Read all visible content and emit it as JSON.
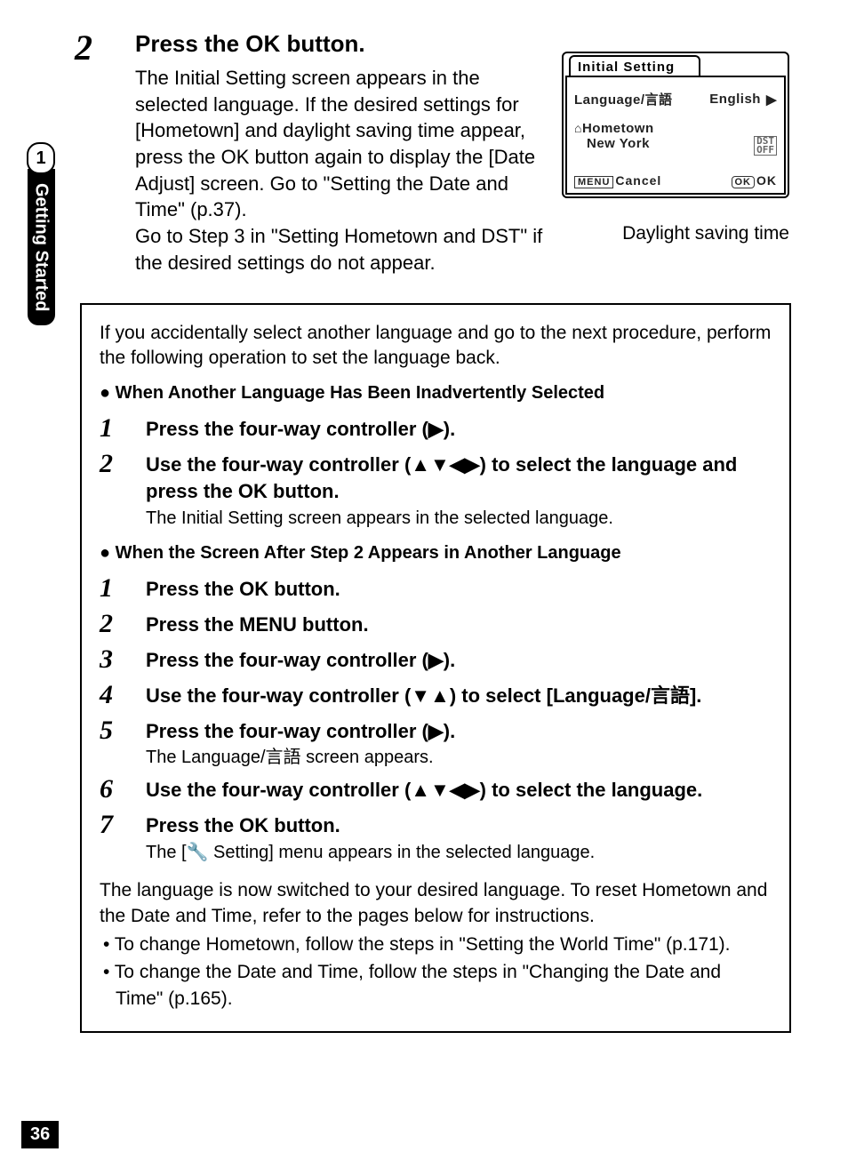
{
  "page_number": "36",
  "side_tab": {
    "number": "1",
    "label": "Getting Started"
  },
  "main_step": {
    "number": "2",
    "title_parts": {
      "p1": "Press the ",
      "ok": "OK",
      "p2": " button."
    },
    "desc": "The Initial Setting screen appears in the selected language. If the desired settings for [Hometown] and daylight saving time appear, press the OK button again to display the [Date Adjust] screen. Go to \"Setting the Date and Time\" (p.37).\nGo to Step 3 in \"Setting Hometown and DST\" if the desired settings do not appear."
  },
  "screen": {
    "title": "Initial Setting",
    "language_label": "Language/言語",
    "language_value": "English",
    "hometown_label": "Hometown",
    "hometown_value": "New York",
    "dst_icon": "DST\nOFF",
    "menu_label": "MENU",
    "cancel": "Cancel",
    "ok_icon": "OK",
    "ok_label": "OK",
    "caption": "Daylight saving time"
  },
  "info": {
    "intro": "If you accidentally select another language and go to the next procedure, perform the following operation to set the language back.",
    "section1_title": "When Another Language Has Been Inadvertently Selected",
    "section1_steps": [
      {
        "n": "1",
        "title": "Press the four-way controller (▶).",
        "desc": ""
      },
      {
        "n": "2",
        "title": "Use the four-way controller (▲▼◀▶) to select the language and press the OK button.",
        "desc": "The Initial Setting screen appears in the selected language."
      }
    ],
    "section2_title": "When the Screen After Step 2 Appears in Another Language",
    "section2_steps": [
      {
        "n": "1",
        "title": "Press the OK button.",
        "desc": ""
      },
      {
        "n": "2",
        "title": "Press the MENU button.",
        "desc": ""
      },
      {
        "n": "3",
        "title": "Press the four-way controller (▶).",
        "desc": ""
      },
      {
        "n": "4",
        "title": "Use the four-way controller (▼▲) to select [Language/言語].",
        "desc": ""
      },
      {
        "n": "5",
        "title": "Press the four-way controller (▶).",
        "desc": "The Language/言語 screen appears."
      },
      {
        "n": "6",
        "title": "Use the four-way controller (▲▼◀▶) to select the language.",
        "desc": ""
      },
      {
        "n": "7",
        "title": "Press the OK button.",
        "desc": "The [🔧 Setting] menu appears in the selected language."
      }
    ],
    "after": "The language is now switched to your desired language. To reset Hometown and the Date and Time, refer to the pages below for instructions.",
    "after_bullets": [
      "To change Hometown, follow the steps in \"Setting the World Time\" (p.171).",
      "To change the Date and Time, follow the steps in \"Changing the Date and Time\" (p.165)."
    ]
  }
}
